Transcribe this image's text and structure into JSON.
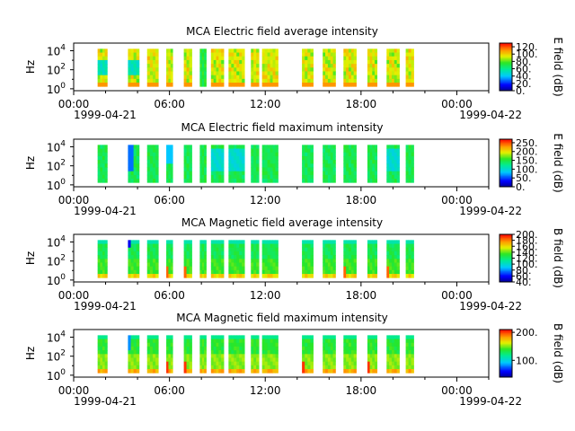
{
  "chart_data": [
    {
      "type": "heatmap",
      "title": "MCA  Electric field average intensity",
      "ylabel": "Hz",
      "y_scale": "log",
      "y_ticks": [
        {
          "base": "10",
          "exp": "0",
          "value": 1
        },
        {
          "base": "10",
          "exp": "2",
          "value": 100
        },
        {
          "base": "10",
          "exp": "4",
          "value": 10000
        }
      ],
      "x_range": [
        "1999-04-21 00:00",
        "1999-04-22 02:00"
      ],
      "x_ticks": [
        "00:00",
        "06:00",
        "12:00",
        "18:00",
        "00:00"
      ],
      "x_dates": [
        "1999-04-21",
        "1999-04-22"
      ],
      "colorbar": {
        "label": "E field (dB)",
        "min": 0,
        "max": 130,
        "ticks": [
          "0.",
          "20.",
          "40.",
          "60.",
          "80.",
          "100.",
          "120."
        ],
        "colormap": "rainbow"
      },
      "intensity_profile": "average-e",
      "data_hours": [
        [
          1.5,
          2.1
        ],
        [
          3.4,
          4.1
        ],
        [
          4.6,
          5.3
        ],
        [
          5.8,
          6.2
        ],
        [
          6.9,
          7.4
        ],
        [
          7.9,
          8.3
        ],
        [
          8.6,
          9.4
        ],
        [
          9.7,
          10.7
        ],
        [
          11.1,
          11.6
        ],
        [
          11.8,
          12.8
        ],
        [
          14.3,
          15.0
        ],
        [
          15.6,
          16.4
        ],
        [
          16.9,
          17.7
        ],
        [
          18.4,
          19.0
        ],
        [
          19.6,
          20.4
        ],
        [
          20.8,
          21.3
        ]
      ]
    },
    {
      "type": "heatmap",
      "title": "MCA  Electric field maximum intensity",
      "ylabel": "Hz",
      "y_scale": "log",
      "y_ticks": [
        {
          "base": "10",
          "exp": "0",
          "value": 1
        },
        {
          "base": "10",
          "exp": "2",
          "value": 100
        },
        {
          "base": "10",
          "exp": "4",
          "value": 10000
        }
      ],
      "x_range": [
        "1999-04-21 00:00",
        "1999-04-22 02:00"
      ],
      "x_ticks": [
        "00:00",
        "06:00",
        "12:00",
        "18:00",
        "00:00"
      ],
      "x_dates": [
        "1999-04-21",
        "1999-04-22"
      ],
      "colorbar": {
        "label": "E field (dB)",
        "min": 0,
        "max": 270,
        "ticks": [
          "0.",
          "50.",
          "100.",
          "150.",
          "200.",
          "250."
        ],
        "colormap": "rainbow"
      },
      "intensity_profile": "maximum-e",
      "data_hours": [
        [
          1.5,
          2.1
        ],
        [
          3.4,
          4.1
        ],
        [
          4.6,
          5.3
        ],
        [
          5.8,
          6.2
        ],
        [
          6.9,
          7.4
        ],
        [
          7.9,
          8.3
        ],
        [
          8.6,
          9.4
        ],
        [
          9.7,
          10.7
        ],
        [
          11.1,
          11.6
        ],
        [
          11.8,
          12.8
        ],
        [
          14.3,
          15.0
        ],
        [
          15.6,
          16.4
        ],
        [
          16.9,
          17.7
        ],
        [
          18.4,
          19.0
        ],
        [
          19.6,
          20.4
        ],
        [
          20.8,
          21.3
        ]
      ]
    },
    {
      "type": "heatmap",
      "title": "MCA  Magnetic field average intensity",
      "ylabel": "Hz",
      "y_scale": "log",
      "y_ticks": [
        {
          "base": "10",
          "exp": "0",
          "value": 1
        },
        {
          "base": "10",
          "exp": "2",
          "value": 100
        },
        {
          "base": "10",
          "exp": "4",
          "value": 10000
        }
      ],
      "x_range": [
        "1999-04-21 00:00",
        "1999-04-22 02:00"
      ],
      "x_ticks": [
        "00:00",
        "06:00",
        "12:00",
        "18:00",
        "00:00"
      ],
      "x_dates": [
        "1999-04-21",
        "1999-04-22"
      ],
      "colorbar": {
        "label": "B field (dB)",
        "min": 40,
        "max": 200,
        "ticks": [
          "40.",
          "60.",
          "80.",
          "100.",
          "120.",
          "140.",
          "160.",
          "180.",
          "200."
        ],
        "colormap": "rainbow"
      },
      "intensity_profile": "average-b",
      "data_hours": [
        [
          1.5,
          2.1
        ],
        [
          3.4,
          4.1
        ],
        [
          4.6,
          5.3
        ],
        [
          5.8,
          6.2
        ],
        [
          6.9,
          7.4
        ],
        [
          7.9,
          8.3
        ],
        [
          8.6,
          9.4
        ],
        [
          9.7,
          10.7
        ],
        [
          11.1,
          11.6
        ],
        [
          11.8,
          12.8
        ],
        [
          14.3,
          15.0
        ],
        [
          15.6,
          16.4
        ],
        [
          16.9,
          17.7
        ],
        [
          18.4,
          19.0
        ],
        [
          19.6,
          20.4
        ],
        [
          20.8,
          21.3
        ]
      ]
    },
    {
      "type": "heatmap",
      "title": "MCA  Magnetic field maximum intensity",
      "ylabel": "Hz",
      "y_scale": "log",
      "y_ticks": [
        {
          "base": "10",
          "exp": "0",
          "value": 1
        },
        {
          "base": "10",
          "exp": "2",
          "value": 100
        },
        {
          "base": "10",
          "exp": "4",
          "value": 10000
        }
      ],
      "x_range": [
        "1999-04-21 00:00",
        "1999-04-22 02:00"
      ],
      "x_ticks": [
        "00:00",
        "06:00",
        "12:00",
        "18:00",
        "00:00"
      ],
      "x_dates": [
        "1999-04-21",
        "1999-04-22"
      ],
      "colorbar": {
        "label": "B field (dB)",
        "min": 40,
        "max": 210,
        "ticks": [
          "100.",
          "200."
        ],
        "colormap": "rainbow"
      },
      "intensity_profile": "maximum-b",
      "data_hours": [
        [
          1.5,
          2.1
        ],
        [
          3.4,
          4.1
        ],
        [
          4.6,
          5.3
        ],
        [
          5.8,
          6.2
        ],
        [
          6.9,
          7.4
        ],
        [
          7.9,
          8.3
        ],
        [
          8.6,
          9.4
        ],
        [
          9.7,
          10.7
        ],
        [
          11.1,
          11.6
        ],
        [
          11.8,
          12.8
        ],
        [
          14.3,
          15.0
        ],
        [
          15.6,
          16.4
        ],
        [
          16.9,
          17.7
        ],
        [
          18.4,
          19.0
        ],
        [
          19.6,
          20.4
        ],
        [
          20.8,
          21.3
        ]
      ]
    }
  ]
}
